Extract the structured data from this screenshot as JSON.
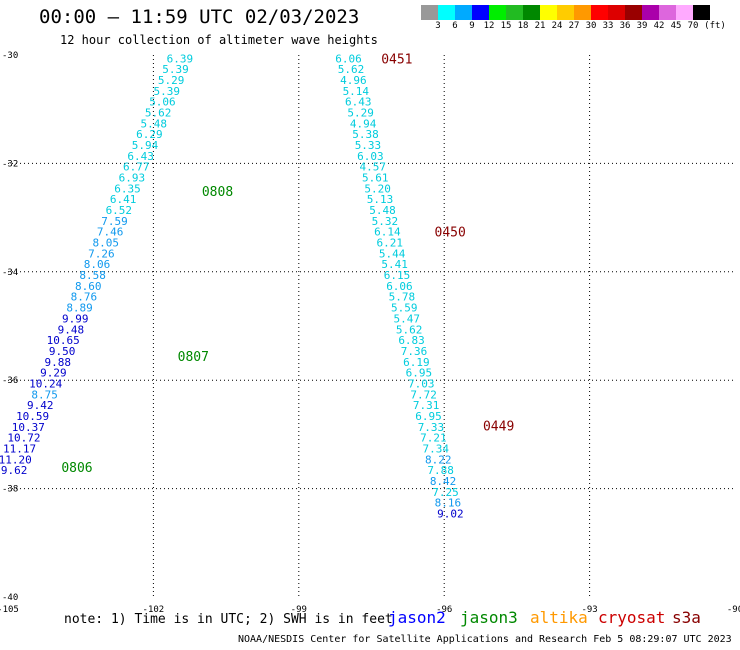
{
  "header": {
    "title": "00:00 – 11:59 UTC 02/03/2023",
    "subtitle": "12 hour collection of altimeter wave heights"
  },
  "colorbar": {
    "bins": [
      {
        "label": "3",
        "color": "#999999"
      },
      {
        "label": "6",
        "color": "#00ffff"
      },
      {
        "label": "9",
        "color": "#00aaff"
      },
      {
        "label": "12",
        "color": "#0000ff"
      },
      {
        "label": "15",
        "color": "#00ee00"
      },
      {
        "label": "18",
        "color": "#22bb22"
      },
      {
        "label": "21",
        "color": "#008800"
      },
      {
        "label": "24",
        "color": "#ffff00"
      },
      {
        "label": "27",
        "color": "#ffcc00"
      },
      {
        "label": "30",
        "color": "#ff9900"
      },
      {
        "label": "33",
        "color": "#ff0000"
      },
      {
        "label": "36",
        "color": "#dd0000"
      },
      {
        "label": "39",
        "color": "#990000"
      },
      {
        "label": "42",
        "color": "#aa00aa"
      },
      {
        "label": "45",
        "color": "#dd66dd"
      },
      {
        "label": "70",
        "color": "#ffaaff"
      },
      {
        "label": "",
        "color": "#000000"
      }
    ],
    "unit": "(ft)"
  },
  "axes": {
    "x_ticks": [
      -105,
      -102,
      -99,
      -96,
      -93,
      -90
    ],
    "x_tick_labels": [
      "-105",
      "-102",
      "-99",
      "-96",
      "-93",
      "-90"
    ],
    "y_ticks": [
      -30,
      -32,
      -34,
      -36,
      -38,
      -40
    ],
    "y_tick_labels": [
      "-30",
      "-32",
      "-34",
      "-36",
      "-38",
      "-40"
    ]
  },
  "tracks": [
    {
      "points": [
        {
          "lon": -101.18,
          "lat": -30.06,
          "swh": "6.39",
          "color": "#00ccdd"
        },
        {
          "lon": -101.27,
          "lat": -30.26,
          "swh": "5.39",
          "color": "#00ccdd"
        },
        {
          "lon": -101.36,
          "lat": -30.46,
          "swh": "5.29",
          "color": "#00ccdd"
        },
        {
          "lon": -101.45,
          "lat": -30.66,
          "swh": "5.39",
          "color": "#00ccdd"
        },
        {
          "lon": -101.54,
          "lat": -30.86,
          "swh": "5.06",
          "color": "#00ccdd"
        },
        {
          "lon": -101.63,
          "lat": -31.06,
          "swh": "5.62",
          "color": "#00ccdd"
        },
        {
          "lon": -101.72,
          "lat": -31.26,
          "swh": "5.48",
          "color": "#00ccdd"
        },
        {
          "lon": -101.81,
          "lat": -31.46,
          "swh": "6.29",
          "color": "#00ccdd"
        },
        {
          "lon": -101.9,
          "lat": -31.66,
          "swh": "5.94",
          "color": "#00ccdd"
        },
        {
          "lon": -101.99,
          "lat": -31.86,
          "swh": "6.43",
          "color": "#00ccdd"
        },
        {
          "lon": -102.08,
          "lat": -32.06,
          "swh": "6.77",
          "color": "#00ccdd"
        },
        {
          "lon": -102.17,
          "lat": -32.26,
          "swh": "6.93",
          "color": "#00ccdd"
        },
        {
          "lon": -102.26,
          "lat": -32.46,
          "swh": "6.35",
          "color": "#00ccdd"
        },
        {
          "lon": -102.35,
          "lat": -32.66,
          "swh": "6.41",
          "color": "#00ccdd"
        },
        {
          "lon": -102.44,
          "lat": -32.86,
          "swh": "6.52",
          "color": "#00ccdd"
        },
        {
          "lon": -102.53,
          "lat": -33.06,
          "swh": "7.59",
          "color": "#1199ee"
        },
        {
          "lon": -102.62,
          "lat": -33.26,
          "swh": "7.46",
          "color": "#1199ee"
        },
        {
          "lon": -102.71,
          "lat": -33.46,
          "swh": "8.05",
          "color": "#1199ee"
        },
        {
          "lon": -102.8,
          "lat": -33.66,
          "swh": "7.26",
          "color": "#1199ee"
        },
        {
          "lon": -102.89,
          "lat": -33.86,
          "swh": "8.06",
          "color": "#1199ee"
        },
        {
          "lon": -102.98,
          "lat": -34.06,
          "swh": "8.58",
          "color": "#1199ee"
        },
        {
          "lon": -103.07,
          "lat": -34.26,
          "swh": "8.60",
          "color": "#1199ee"
        },
        {
          "lon": -103.16,
          "lat": -34.46,
          "swh": "8.76",
          "color": "#1199ee"
        },
        {
          "lon": -103.25,
          "lat": -34.66,
          "swh": "8.89",
          "color": "#1199ee"
        },
        {
          "lon": -103.34,
          "lat": -34.86,
          "swh": "9.99",
          "color": "#0000cc"
        },
        {
          "lon": -103.43,
          "lat": -35.06,
          "swh": "9.48",
          "color": "#0000cc"
        },
        {
          "lon": -103.52,
          "lat": -35.26,
          "swh": "10.65",
          "color": "#0000cc"
        },
        {
          "lon": -103.61,
          "lat": -35.46,
          "swh": "9.50",
          "color": "#0000cc"
        },
        {
          "lon": -103.7,
          "lat": -35.66,
          "swh": "9.88",
          "color": "#0000cc"
        },
        {
          "lon": -103.79,
          "lat": -35.86,
          "swh": "9.29",
          "color": "#0000cc"
        },
        {
          "lon": -103.88,
          "lat": -36.06,
          "swh": "10.24",
          "color": "#0000cc"
        },
        {
          "lon": -103.97,
          "lat": -36.26,
          "swh": "8.75",
          "color": "#1199ee"
        },
        {
          "lon": -104.06,
          "lat": -36.46,
          "swh": "9.42",
          "color": "#0000cc"
        },
        {
          "lon": -104.15,
          "lat": -36.66,
          "swh": "10.59",
          "color": "#0000cc"
        },
        {
          "lon": -104.24,
          "lat": -36.86,
          "swh": "10.37",
          "color": "#0000cc"
        },
        {
          "lon": -104.33,
          "lat": -37.06,
          "swh": "10.72",
          "color": "#0000cc"
        },
        {
          "lon": -104.42,
          "lat": -37.26,
          "swh": "11.17",
          "color": "#0000cc"
        },
        {
          "lon": -104.51,
          "lat": -37.46,
          "swh": "11.20",
          "color": "#0000cc"
        },
        {
          "lon": -104.6,
          "lat": -37.66,
          "swh": "9.62",
          "color": "#0000cc"
        }
      ],
      "time_labels": [
        {
          "lon": -101.0,
          "lat": -32.51,
          "text": "0808",
          "color": "#008800"
        },
        {
          "lon": -101.5,
          "lat": -35.55,
          "text": "0807",
          "color": "#008800"
        },
        {
          "lon": -103.9,
          "lat": -37.6,
          "text": "0806",
          "color": "#008800"
        }
      ]
    },
    {
      "points": [
        {
          "lon": -97.7,
          "lat": -30.06,
          "swh": "6.06",
          "color": "#00ccdd"
        },
        {
          "lon": -97.65,
          "lat": -30.26,
          "swh": "5.62",
          "color": "#00ccdd"
        },
        {
          "lon": -97.6,
          "lat": -30.46,
          "swh": "4.96",
          "color": "#00ccdd"
        },
        {
          "lon": -97.55,
          "lat": -30.66,
          "swh": "5.14",
          "color": "#00ccdd"
        },
        {
          "lon": -97.5,
          "lat": -30.86,
          "swh": "6.43",
          "color": "#00ccdd"
        },
        {
          "lon": -97.45,
          "lat": -31.06,
          "swh": "5.29",
          "color": "#00ccdd"
        },
        {
          "lon": -97.4,
          "lat": -31.26,
          "swh": "4.94",
          "color": "#00ccdd"
        },
        {
          "lon": -97.35,
          "lat": -31.46,
          "swh": "5.38",
          "color": "#00ccdd"
        },
        {
          "lon": -97.3,
          "lat": -31.66,
          "swh": "5.33",
          "color": "#00ccdd"
        },
        {
          "lon": -97.25,
          "lat": -31.86,
          "swh": "6.03",
          "color": "#00ccdd"
        },
        {
          "lon": -97.2,
          "lat": -32.06,
          "swh": "4.57",
          "color": "#00ccdd"
        },
        {
          "lon": -97.15,
          "lat": -32.26,
          "swh": "5.61",
          "color": "#00ccdd"
        },
        {
          "lon": -97.1,
          "lat": -32.46,
          "swh": "5.20",
          "color": "#00ccdd"
        },
        {
          "lon": -97.05,
          "lat": -32.66,
          "swh": "5.13",
          "color": "#00ccdd"
        },
        {
          "lon": -97.0,
          "lat": -32.86,
          "swh": "5.48",
          "color": "#00ccdd"
        },
        {
          "lon": -96.95,
          "lat": -33.06,
          "swh": "5.32",
          "color": "#00ccdd"
        },
        {
          "lon": -96.9,
          "lat": -33.26,
          "swh": "6.14",
          "color": "#00ccdd"
        },
        {
          "lon": -96.85,
          "lat": -33.46,
          "swh": "6.21",
          "color": "#00ccdd"
        },
        {
          "lon": -96.8,
          "lat": -33.66,
          "swh": "5.44",
          "color": "#00ccdd"
        },
        {
          "lon": -96.75,
          "lat": -33.86,
          "swh": "5.41",
          "color": "#00ccdd"
        },
        {
          "lon": -96.7,
          "lat": -34.06,
          "swh": "6.15",
          "color": "#00ccdd"
        },
        {
          "lon": -96.65,
          "lat": -34.26,
          "swh": "6.06",
          "color": "#00ccdd"
        },
        {
          "lon": -96.6,
          "lat": -34.46,
          "swh": "5.78",
          "color": "#00ccdd"
        },
        {
          "lon": -96.55,
          "lat": -34.66,
          "swh": "5.59",
          "color": "#00ccdd"
        },
        {
          "lon": -96.5,
          "lat": -34.86,
          "swh": "5.47",
          "color": "#00ccdd"
        },
        {
          "lon": -96.45,
          "lat": -35.06,
          "swh": "5.62",
          "color": "#00ccdd"
        },
        {
          "lon": -96.4,
          "lat": -35.26,
          "swh": "6.83",
          "color": "#00ccdd"
        },
        {
          "lon": -96.35,
          "lat": -35.46,
          "swh": "7.36",
          "color": "#00ccdd"
        },
        {
          "lon": -96.3,
          "lat": -35.66,
          "swh": "6.19",
          "color": "#00ccdd"
        },
        {
          "lon": -96.25,
          "lat": -35.86,
          "swh": "6.95",
          "color": "#00ccdd"
        },
        {
          "lon": -96.2,
          "lat": -36.06,
          "swh": "7.03",
          "color": "#00ccdd"
        },
        {
          "lon": -96.15,
          "lat": -36.26,
          "swh": "7.72",
          "color": "#00ccdd"
        },
        {
          "lon": -96.1,
          "lat": -36.46,
          "swh": "7.31",
          "color": "#00ccdd"
        },
        {
          "lon": -96.05,
          "lat": -36.66,
          "swh": "6.95",
          "color": "#00ccdd"
        },
        {
          "lon": -96.0,
          "lat": -36.86,
          "swh": "7.33",
          "color": "#00ccdd"
        },
        {
          "lon": -95.95,
          "lat": -37.06,
          "swh": "7.21",
          "color": "#00ccdd"
        },
        {
          "lon": -95.9,
          "lat": -37.26,
          "swh": "7.34",
          "color": "#00ccdd"
        },
        {
          "lon": -95.85,
          "lat": -37.46,
          "swh": "8.22",
          "color": "#1199ee"
        },
        {
          "lon": -95.8,
          "lat": -37.66,
          "swh": "7.88",
          "color": "#00ccdd"
        },
        {
          "lon": -95.75,
          "lat": -37.86,
          "swh": "8.42",
          "color": "#1199ee"
        },
        {
          "lon": -95.7,
          "lat": -38.06,
          "swh": "7.25",
          "color": "#00ccdd"
        },
        {
          "lon": -95.65,
          "lat": -38.26,
          "swh": "8.16",
          "color": "#1199ee"
        },
        {
          "lon": -95.6,
          "lat": -38.46,
          "swh": "9.02",
          "color": "#0000cc"
        }
      ],
      "time_labels": [
        {
          "lon": -97.3,
          "lat": -30.06,
          "text": "0451",
          "color": "#880000"
        },
        {
          "lon": -96.2,
          "lat": -33.26,
          "text": "0450",
          "color": "#880000"
        },
        {
          "lon": -95.2,
          "lat": -36.84,
          "text": "0449",
          "color": "#880000"
        }
      ]
    }
  ],
  "footer": {
    "note": "note:  1) Time is in UTC;  2) SWH is in feet",
    "satellites": [
      {
        "name": "jason2",
        "color": "#0000ff"
      },
      {
        "name": "jason3",
        "color": "#008800"
      },
      {
        "name": "altika",
        "color": "#ff9900"
      },
      {
        "name": "cryosat",
        "color": "#cc0000"
      },
      {
        "name": "s3a",
        "color": "#880000"
      }
    ],
    "credit": "NOAA/NESDIS Center for Satellite Applications and Research   Feb  5 08:29:07 UTC 2023"
  }
}
